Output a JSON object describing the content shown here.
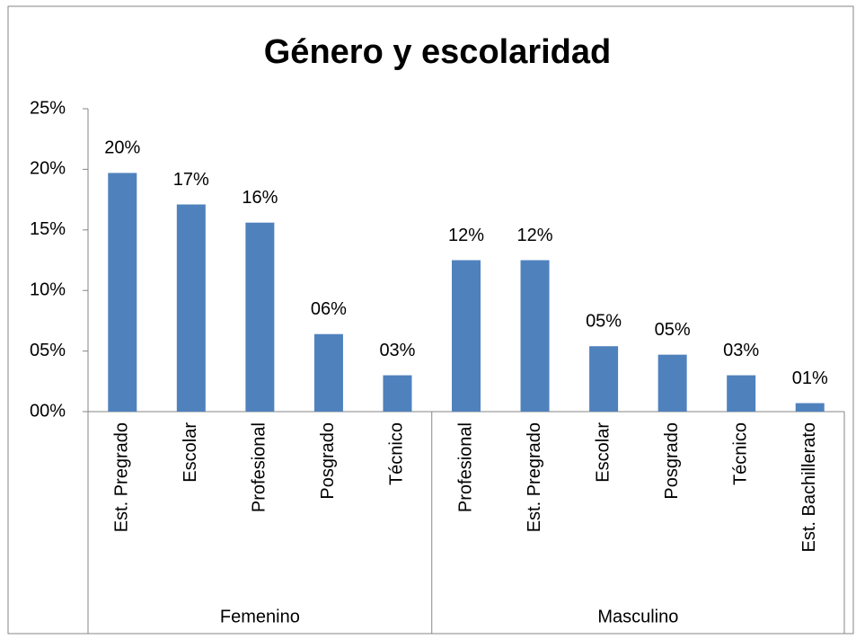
{
  "chart_data": {
    "type": "bar",
    "title": "Género y escolaridad",
    "color": "#4f81bd",
    "ylim": [
      0,
      25
    ],
    "yticks": [
      {
        "value": 0,
        "label": "00%"
      },
      {
        "value": 5,
        "label": "05%"
      },
      {
        "value": 10,
        "label": "10%"
      },
      {
        "value": 15,
        "label": "15%"
      },
      {
        "value": 20,
        "label": "20%"
      },
      {
        "value": 25,
        "label": "25%"
      }
    ],
    "groups": [
      {
        "name": "Femenino",
        "categories": [
          "Est. Pregrado",
          "Escolar",
          "Profesional",
          "Posgrado",
          "Técnico"
        ],
        "values": [
          19.7,
          17.1,
          15.6,
          6.4,
          3.0
        ],
        "value_labels": [
          "20%",
          "17%",
          "16%",
          "06%",
          "03%"
        ]
      },
      {
        "name": "Masculino",
        "categories": [
          "Profesional",
          "Est. Pregrado",
          "Escolar",
          "Posgrado",
          "Técnico",
          "Est. Bachillerato"
        ],
        "values": [
          12.5,
          12.5,
          5.4,
          4.7,
          3.0,
          0.7
        ],
        "value_labels": [
          "12%",
          "12%",
          "05%",
          "05%",
          "03%",
          "01%"
        ]
      }
    ]
  }
}
